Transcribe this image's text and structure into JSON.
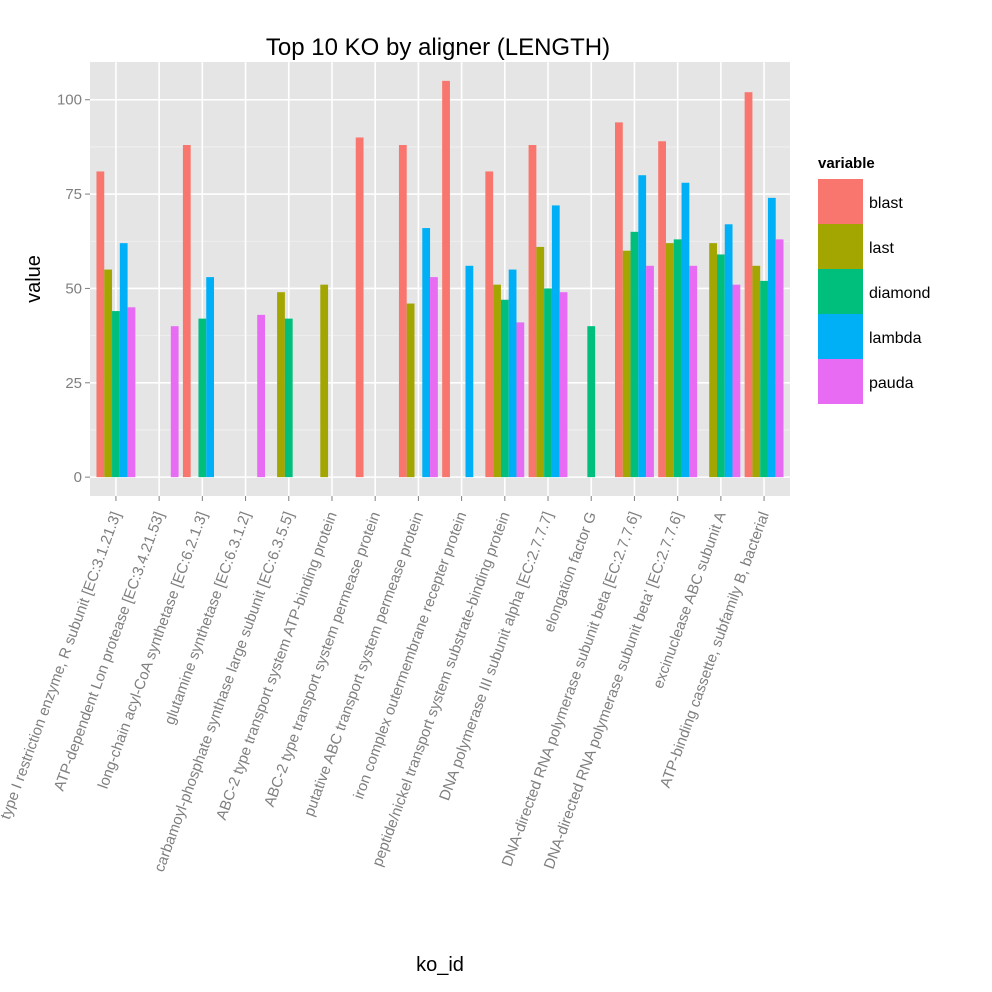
{
  "chart_data": {
    "type": "bar",
    "title": "Top 10 KO by aligner (LENGTH)",
    "xlabel": "ko_id",
    "ylabel": "value",
    "ylim": [
      -5,
      110
    ],
    "yticks": [
      0,
      25,
      50,
      75,
      100
    ],
    "grid": true,
    "legend": {
      "title": "variable",
      "placement": "right"
    },
    "categories": [
      "type I restriction enzyme, R subunit [EC:3.1.21.3]",
      "ATP-dependent Lon protease [EC:3.4.21.53]",
      "long-chain acyl-CoA synthetase [EC:6.2.1.3]",
      "glutamine synthetase [EC:6.3.1.2]",
      "carbamoyl-phosphate synthase large subunit [EC:6.3.5.5]",
      "ABC-2 type transport system ATP-binding protein",
      "ABC-2 type transport system permease protein",
      "putative ABC transport system permease protein",
      "iron complex outermembrane recepter protein",
      "peptide/nickel transport system substrate-binding protein",
      "DNA polymerase III subunit alpha [EC:2.7.7.7]",
      "elongation factor G",
      "DNA-directed RNA polymerase subunit beta [EC:2.7.7.6]",
      "DNA-directed RNA polymerase subunit beta' [EC:2.7.7.6]",
      "excinuclease ABC subunit A",
      "ATP-binding cassette, subfamily B, bacterial"
    ],
    "series": [
      {
        "name": "blast",
        "color": "#F8766D",
        "values": [
          81,
          null,
          88,
          null,
          null,
          null,
          90,
          88,
          105,
          81,
          88,
          null,
          94,
          89,
          null,
          102
        ]
      },
      {
        "name": "last",
        "color": "#A3A500",
        "values": [
          55,
          null,
          null,
          null,
          49,
          51,
          null,
          46,
          null,
          51,
          61,
          null,
          60,
          62,
          62,
          56
        ]
      },
      {
        "name": "diamond",
        "color": "#00BF7D",
        "values": [
          44,
          null,
          42,
          null,
          42,
          null,
          null,
          null,
          null,
          47,
          50,
          40,
          65,
          63,
          59,
          52
        ]
      },
      {
        "name": "lambda",
        "color": "#00B0F6",
        "values": [
          62,
          null,
          53,
          null,
          null,
          null,
          null,
          66,
          56,
          55,
          72,
          null,
          80,
          78,
          67,
          74
        ]
      },
      {
        "name": "pauda",
        "color": "#E76BF3",
        "values": [
          45,
          40,
          null,
          43,
          null,
          null,
          null,
          53,
          null,
          41,
          49,
          null,
          56,
          56,
          51,
          63
        ]
      }
    ]
  }
}
